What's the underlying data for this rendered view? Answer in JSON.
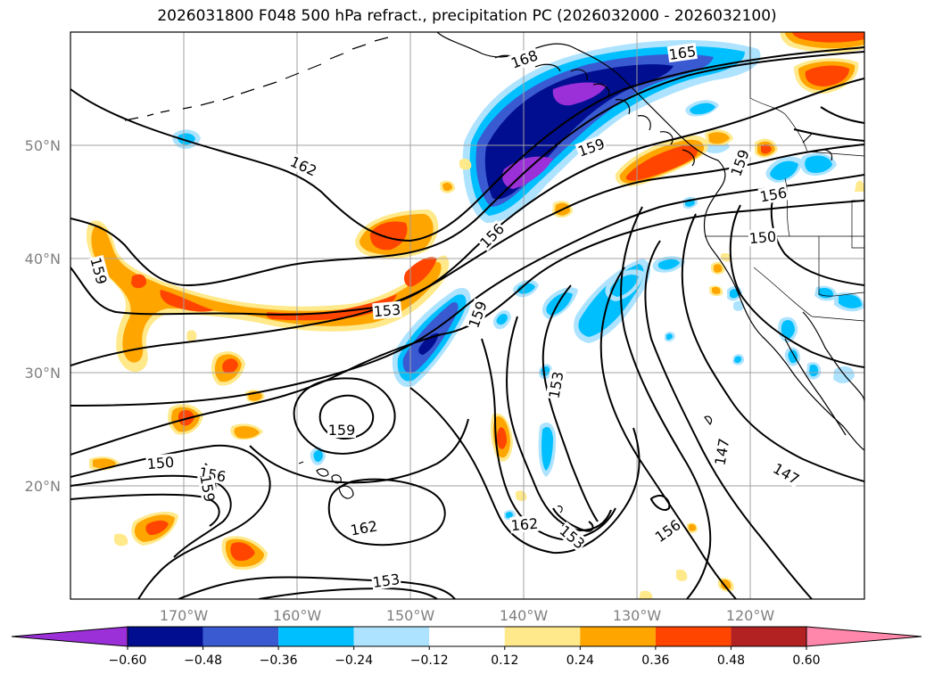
{
  "title": "2026031800 F048 500 hPa refract., precipitation PC (2026032000 - 2026032100)",
  "map": {
    "lat_labels": [
      "50°N",
      "40°N",
      "30°N",
      "20°N"
    ],
    "lon_labels": [
      "170°W",
      "160°W",
      "150°W",
      "140°W",
      "130°W",
      "120°W"
    ],
    "contour_labels": [
      {
        "text": "168"
      },
      {
        "text": "165"
      },
      {
        "text": "162"
      },
      {
        "text": "159"
      },
      {
        "text": "159"
      },
      {
        "text": "156"
      },
      {
        "text": "156"
      },
      {
        "text": "150"
      },
      {
        "text": "159"
      },
      {
        "text": "153"
      },
      {
        "text": "159"
      },
      {
        "text": "153"
      },
      {
        "text": "159"
      },
      {
        "text": "150"
      },
      {
        "text": "156"
      },
      {
        "text": "159"
      },
      {
        "text": "162"
      },
      {
        "text": "162"
      },
      {
        "text": "153"
      },
      {
        "text": "156"
      },
      {
        "text": "147"
      },
      {
        "text": "147"
      },
      {
        "text": "153"
      }
    ]
  },
  "colorbar": {
    "colors": [
      "#9b30d8",
      "#000e8f",
      "#3a5ad1",
      "#00bfff",
      "#ade3ff",
      "#ffffff",
      "#ffe98a",
      "#ffa500",
      "#ff4500",
      "#b22222",
      "#ff87ab"
    ],
    "tick_labels": [
      "−0.60",
      "−0.48",
      "−0.36",
      "−0.24",
      "−0.12",
      "0.12",
      "0.24",
      "0.36",
      "0.48",
      "0.60"
    ]
  }
}
